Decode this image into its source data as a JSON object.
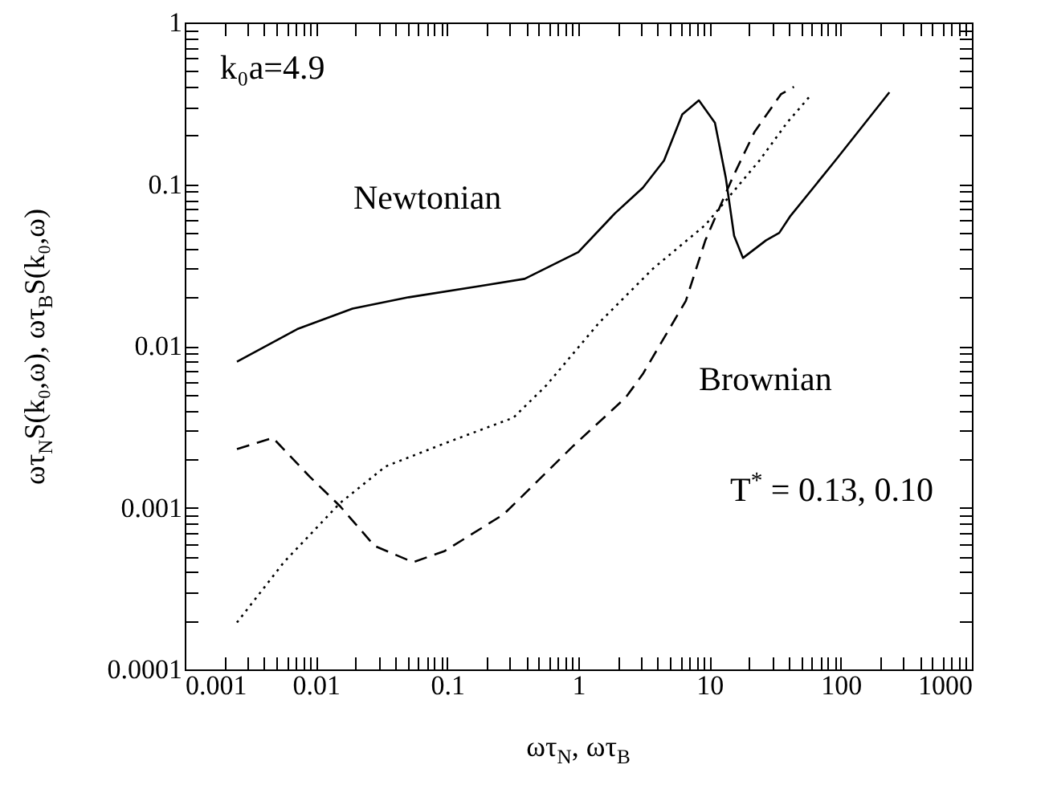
{
  "chart_data": {
    "type": "line",
    "xlabel": "ωτ$_{N}$, ωτ$_{B}$",
    "ylabel": "ωτ$_{N}$S(k₀,ω), ωτ$_{B}$S(k₀,ω)",
    "log": "xy",
    "xlim": [
      0.001,
      1000
    ],
    "ylim": [
      0.0001,
      1
    ],
    "xticks": [
      0.001,
      {
        "value": 0.002,
        "label": null
      },
      {
        "value": 0.003,
        "label": null
      },
      {
        "value": 0.004,
        "label": null
      },
      {
        "value": 0.005,
        "label": null
      },
      {
        "value": 0.006,
        "label": null
      },
      {
        "value": 0.007,
        "label": null
      },
      {
        "value": 0.008,
        "label": null
      },
      {
        "value": 0.009,
        "label": null
      },
      0.01,
      {
        "value": 0.02,
        "label": null
      },
      {
        "value": 0.03,
        "label": null
      },
      {
        "value": 0.04,
        "label": null
      },
      {
        "value": 0.05,
        "label": null
      },
      {
        "value": 0.06,
        "label": null
      },
      {
        "value": 0.07,
        "label": null
      },
      {
        "value": 0.08,
        "label": null
      },
      {
        "value": 0.09,
        "label": null
      },
      0.1,
      {
        "value": 0.2,
        "label": null
      },
      {
        "value": 0.3,
        "label": null
      },
      {
        "value": 0.4,
        "label": null
      },
      {
        "value": 0.5,
        "label": null
      },
      {
        "value": 0.6,
        "label": null
      },
      {
        "value": 0.7,
        "label": null
      },
      {
        "value": 0.8,
        "label": null
      },
      {
        "value": 0.9,
        "label": null
      },
      1,
      {
        "value": 2,
        "label": null
      },
      {
        "value": 3,
        "label": null
      },
      {
        "value": 4,
        "label": null
      },
      {
        "value": 5,
        "label": null
      },
      {
        "value": 6,
        "label": null
      },
      {
        "value": 7,
        "label": null
      },
      {
        "value": 8,
        "label": null
      },
      {
        "value": 9,
        "label": null
      },
      10,
      {
        "value": 20,
        "label": null
      },
      {
        "value": 30,
        "label": null
      },
      {
        "value": 40,
        "label": null
      },
      {
        "value": 50,
        "label": null
      },
      {
        "value": 60,
        "label": null
      },
      {
        "value": 70,
        "label": null
      },
      {
        "value": 80,
        "label": null
      },
      {
        "value": 90,
        "label": null
      },
      100,
      {
        "value": 200,
        "label": null
      },
      {
        "value": 300,
        "label": null
      },
      {
        "value": 400,
        "label": null
      },
      {
        "value": 500,
        "label": null
      },
      {
        "value": 600,
        "label": null
      },
      {
        "value": 700,
        "label": null
      },
      {
        "value": 800,
        "label": null
      },
      {
        "value": 900,
        "label": null
      },
      1000
    ],
    "yticks": [
      0.0001,
      {
        "value": 0.0002,
        "label": null
      },
      {
        "value": 0.0003,
        "label": null
      },
      {
        "value": 0.0004,
        "label": null
      },
      {
        "value": 0.0005,
        "label": null
      },
      {
        "value": 0.0006,
        "label": null
      },
      {
        "value": 0.0007,
        "label": null
      },
      {
        "value": 0.0008,
        "label": null
      },
      {
        "value": 0.0009,
        "label": null
      },
      0.001,
      {
        "value": 0.002,
        "label": null
      },
      {
        "value": 0.003,
        "label": null
      },
      {
        "value": 0.004,
        "label": null
      },
      {
        "value": 0.005,
        "label": null
      },
      {
        "value": 0.006,
        "label": null
      },
      {
        "value": 0.007,
        "label": null
      },
      {
        "value": 0.008,
        "label": null
      },
      {
        "value": 0.009,
        "label": null
      },
      0.01,
      {
        "value": 0.02,
        "label": null
      },
      {
        "value": 0.03,
        "label": null
      },
      {
        "value": 0.04,
        "label": null
      },
      {
        "value": 0.05,
        "label": null
      },
      {
        "value": 0.06,
        "label": null
      },
      {
        "value": 0.07,
        "label": null
      },
      {
        "value": 0.08,
        "label": null
      },
      {
        "value": 0.09,
        "label": null
      },
      0.1,
      {
        "value": 0.2,
        "label": null
      },
      {
        "value": 0.3,
        "label": null
      },
      {
        "value": 0.4,
        "label": null
      },
      {
        "value": 0.5,
        "label": null
      },
      {
        "value": 0.6,
        "label": null
      },
      {
        "value": 0.7,
        "label": null
      },
      {
        "value": 0.8,
        "label": null
      },
      {
        "value": 0.9,
        "label": null
      },
      1
    ],
    "grid": false,
    "series": [
      {
        "color": "#000000",
        "line_style": "solid",
        "x": [
          0.0025,
          0.0072,
          0.019,
          0.051,
          0.18,
          0.39,
          1.0,
          1.9,
          3.1,
          4.5,
          6.2,
          8.3,
          11,
          13.3,
          15.4,
          18,
          27,
          34,
          41,
          91,
          235
        ],
        "values": [
          0.008,
          0.0127,
          0.017,
          0.02,
          0.0235,
          0.026,
          0.038,
          0.066,
          0.095,
          0.14,
          0.27,
          0.33,
          0.24,
          0.11,
          0.048,
          0.035,
          0.045,
          0.05,
          0.063,
          0.14,
          0.37
        ]
      },
      {
        "color": "#000000",
        "line_style": "dashed",
        "x": [
          0.0025,
          0.0047,
          0.009,
          0.0153,
          0.028,
          0.055,
          0.096,
          0.27,
          0.91,
          2.3,
          3.1,
          6.6,
          9.3,
          15,
          22,
          35,
          44
        ],
        "values": [
          0.0023,
          0.0027,
          0.00155,
          0.00102,
          0.00058,
          0.00046,
          0.00054,
          0.00091,
          0.0024,
          0.0048,
          0.0067,
          0.019,
          0.045,
          0.11,
          0.21,
          0.36,
          0.4
        ]
      },
      {
        "color": "#000000",
        "line_style": "dotted",
        "x": [
          0.0025,
          0.0057,
          0.0153,
          0.034,
          0.096,
          0.32,
          0.57,
          1.45,
          3.7,
          9.3,
          24,
          39,
          60
        ],
        "values": [
          0.000195,
          0.00046,
          0.00107,
          0.0018,
          0.0025,
          0.0036,
          0.0057,
          0.014,
          0.03,
          0.056,
          0.14,
          0.24,
          0.36
        ]
      }
    ],
    "annotations": [
      "k₀a=4.9",
      "T$^{*}$ = 0.13, 0.10",
      "Newtonian",
      "Brownian"
    ]
  }
}
